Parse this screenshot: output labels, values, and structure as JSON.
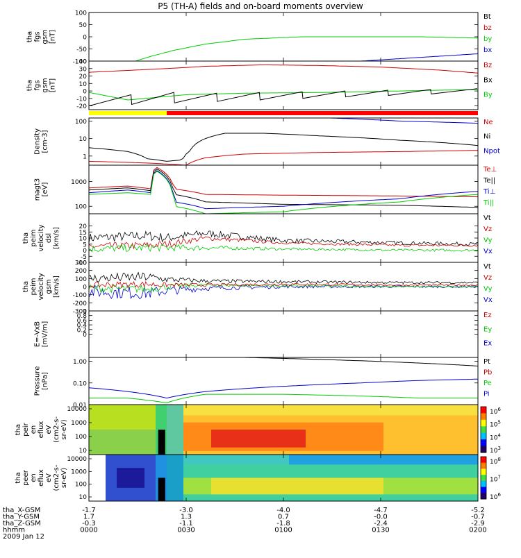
{
  "title": "P5 (TH-A) fields and on-board moments overview",
  "colors": {
    "black": "#000000",
    "red": "#cc0000",
    "green": "#00cc00",
    "blue": "#0000cc",
    "yellow": "#ffff00",
    "brightred": "#ff0000"
  },
  "chart_data": [
    {
      "type": "line",
      "id": "fgs_gsm",
      "ylabel": [
        "tha",
        "fgs",
        "gsm",
        "[nT]"
      ],
      "ylim": [
        -100,
        100
      ],
      "yticks": [
        100,
        50,
        0,
        -50,
        -100
      ],
      "log": false,
      "legend": [
        {
          "name": "Bt",
          "color": "black"
        },
        {
          "name": "bz",
          "color": "red"
        },
        {
          "name": "by",
          "color": "green"
        },
        {
          "name": "bx",
          "color": "blue"
        }
      ],
      "series": [
        {
          "name": "by",
          "color": "green",
          "x": [
            0.12,
            0.16,
            0.22,
            0.3,
            0.4,
            0.55,
            0.7,
            0.85,
            1.0
          ],
          "y": [
            -100,
            -80,
            -55,
            -30,
            -10,
            0,
            0,
            0,
            -5
          ]
        },
        {
          "name": "bx",
          "color": "blue",
          "x": [
            0.7,
            0.85,
            1.0
          ],
          "y": [
            -100,
            -85,
            -70
          ]
        }
      ]
    },
    {
      "type": "line",
      "id": "fgs_dsl",
      "ylabel": [
        "tha",
        "fgs",
        "gsm",
        "[nT]"
      ],
      "ylim": [
        -25,
        40
      ],
      "yticks": [
        40,
        30,
        20,
        10,
        0,
        -10,
        -20
      ],
      "log": false,
      "legend": [
        {
          "name": "Bz",
          "color": "red"
        },
        {
          "name": "Bx",
          "color": "black"
        },
        {
          "name": "By",
          "color": "green"
        }
      ],
      "series": [
        {
          "name": "Bz",
          "color": "red",
          "x": [
            0,
            0.2,
            0.3,
            0.45,
            0.6,
            0.75,
            0.9,
            1.0
          ],
          "y": [
            25,
            30,
            33,
            35,
            34,
            32,
            28,
            24
          ]
        },
        {
          "name": "By",
          "color": "green",
          "x": [
            0,
            0.1,
            0.25,
            0.4,
            0.6,
            0.8,
            1.0
          ],
          "y": [
            -2,
            -12,
            -5,
            -3,
            -2,
            0,
            2
          ]
        }
      ],
      "sawtooth": {
        "name": "Bx",
        "color": "black",
        "x": [
          0,
          0.11,
          0.22,
          0.33,
          0.44,
          0.55,
          0.66,
          0.77,
          0.88,
          1.0
        ],
        "low": [
          -20,
          -18,
          -16,
          -14,
          -12,
          -10,
          -8,
          -6,
          -4,
          -2
        ],
        "high": [
          -5,
          -2,
          -3,
          -2,
          -1,
          0,
          1,
          2,
          3,
          4
        ]
      },
      "bar": [
        {
          "x0": 0,
          "x1": 0.2,
          "color": "yellow"
        },
        {
          "x0": 0.2,
          "x1": 1.0,
          "color": "brightred"
        }
      ]
    },
    {
      "type": "line",
      "id": "density",
      "ylabel": [
        "Density",
        "[cm-3]"
      ],
      "ylim": [
        0.3,
        150
      ],
      "yticks": [
        100,
        10,
        1
      ],
      "yticklabels": [
        "100",
        "10",
        "1"
      ],
      "log": true,
      "legend": [
        {
          "name": "Ne",
          "color": "red"
        },
        {
          "name": "Ni",
          "color": "black"
        },
        {
          "name": "Npot",
          "color": "blue"
        }
      ],
      "series": [
        {
          "name": "Ni",
          "color": "black",
          "x": [
            0,
            0.1,
            0.15,
            0.2,
            0.24,
            0.26,
            0.3,
            0.35,
            0.45,
            0.6,
            0.8,
            1.0
          ],
          "y": [
            3,
            1.8,
            0.7,
            0.5,
            0.6,
            2,
            10,
            20,
            20,
            14,
            8,
            4
          ]
        },
        {
          "name": "Ne",
          "color": "red",
          "x": [
            0,
            0.15,
            0.25,
            0.3,
            0.4,
            0.6,
            0.8,
            1.0
          ],
          "y": [
            0.5,
            0.4,
            0.3,
            0.8,
            1.3,
            1.6,
            1.8,
            2.1
          ]
        },
        {
          "name": "Npot",
          "color": "blue",
          "x": [
            0.62,
            0.8,
            1.0
          ],
          "y": [
            150,
            100,
            75
          ]
        }
      ]
    },
    {
      "type": "line",
      "id": "temperature",
      "ylabel": [
        "magt3",
        "[eV]"
      ],
      "ylim": [
        50,
        4500
      ],
      "yticks": [
        1000,
        100
      ],
      "yticklabels": [
        "1000",
        "100"
      ],
      "log": true,
      "legend": [
        {
          "name": "Te⊥",
          "color": "red"
        },
        {
          "name": "Te||",
          "color": "black"
        },
        {
          "name": "Ti⊥",
          "color": "blue"
        },
        {
          "name": "Ti||",
          "color": "green"
        }
      ],
      "series": [
        {
          "name": "Te⊥",
          "color": "red",
          "x": [
            0,
            0.1,
            0.16,
            0.17,
            0.22,
            0.3,
            0.5,
            0.8,
            1.0
          ],
          "y": [
            550,
            650,
            500,
            4000,
            500,
            300,
            280,
            260,
            240
          ]
        },
        {
          "name": "Te||",
          "color": "black",
          "x": [
            0,
            0.1,
            0.16,
            0.17,
            0.22,
            0.3,
            0.5,
            0.8,
            1.0
          ],
          "y": [
            450,
            550,
            420,
            3500,
            300,
            150,
            120,
            110,
            90
          ]
        },
        {
          "name": "Ti⊥",
          "color": "blue",
          "x": [
            0,
            0.1,
            0.16,
            0.17,
            0.22,
            0.3,
            0.5,
            0.8,
            1.0
          ],
          "y": [
            350,
            450,
            350,
            3000,
            150,
            80,
            100,
            200,
            400
          ]
        },
        {
          "name": "Ti||",
          "color": "green",
          "x": [
            0,
            0.1,
            0.16,
            0.17,
            0.22,
            0.3,
            0.5,
            0.8,
            1.0
          ],
          "y": [
            300,
            350,
            300,
            2800,
            100,
            50,
            60,
            150,
            300
          ]
        }
      ]
    },
    {
      "type": "line",
      "id": "velocity_dsl",
      "ylabel": [
        "tha",
        "peim",
        "velocity",
        "dsl",
        "[km/s]"
      ],
      "ylim": [
        -10,
        30
      ],
      "yticks": [
        -10,
        -5,
        0,
        5,
        10,
        15,
        20
      ],
      "log": false,
      "legend": [
        {
          "name": "Vt",
          "color": "black"
        },
        {
          "name": "Vz",
          "color": "red"
        },
        {
          "name": "Vy",
          "color": "green"
        },
        {
          "name": "Vx",
          "color": "blue"
        }
      ],
      "noisy": [
        {
          "name": "Vt",
          "color": "black",
          "x": [
            0,
            0.15,
            0.2,
            0.3,
            0.5,
            0.8,
            1.0
          ],
          "y": [
            10,
            12,
            10,
            14,
            8,
            6,
            5
          ],
          "amp": [
            4,
            4,
            4,
            3,
            2,
            1.5,
            1.5
          ]
        },
        {
          "name": "Vz",
          "color": "red",
          "x": [
            0,
            0.15,
            0.2,
            0.3,
            0.5,
            0.8,
            1.0
          ],
          "y": [
            3,
            4,
            5,
            10,
            6,
            4,
            4
          ],
          "amp": [
            3,
            3,
            3,
            2,
            1,
            1,
            1
          ]
        },
        {
          "name": "Vy",
          "color": "green",
          "x": [
            0,
            0.15,
            0.2,
            0.3,
            0.5,
            0.8,
            1.0
          ],
          "y": [
            1,
            2,
            2,
            2,
            1,
            0,
            0
          ],
          "amp": [
            3,
            3,
            3,
            2,
            1,
            1,
            1
          ]
        }
      ]
    },
    {
      "type": "line",
      "id": "velocity_gsm",
      "ylabel": [
        "tha",
        "peim",
        "velocity",
        "gsm",
        "[km/s]"
      ],
      "ylim": [
        -300,
        300
      ],
      "yticks": [
        300,
        200,
        100,
        0,
        -100,
        -200,
        -300
      ],
      "log": false,
      "legend": [
        {
          "name": "Vt",
          "color": "black"
        },
        {
          "name": "Vz",
          "color": "red"
        },
        {
          "name": "Vy",
          "color": "green"
        },
        {
          "name": "Vx",
          "color": "blue"
        }
      ],
      "noisy": [
        {
          "name": "Vx",
          "color": "blue",
          "x": [
            0,
            0.15,
            0.2,
            0.3,
            0.5,
            0.8,
            1.0
          ],
          "y": [
            -60,
            -80,
            -50,
            -20,
            0,
            0,
            0
          ],
          "amp": [
            80,
            80,
            60,
            30,
            20,
            15,
            15
          ]
        },
        {
          "name": "Vy",
          "color": "green",
          "x": [
            0,
            0.15,
            0.2,
            0.3,
            0.5,
            0.8,
            1.0
          ],
          "y": [
            -20,
            -30,
            0,
            20,
            10,
            0,
            0
          ],
          "amp": [
            50,
            50,
            40,
            20,
            15,
            10,
            10
          ]
        },
        {
          "name": "Vz",
          "color": "red",
          "x": [
            0,
            0.15,
            0.2,
            0.3,
            0.5,
            0.8,
            1.0
          ],
          "y": [
            20,
            30,
            20,
            20,
            30,
            20,
            20
          ],
          "amp": [
            40,
            40,
            30,
            20,
            15,
            10,
            10
          ]
        },
        {
          "name": "Vt",
          "color": "black",
          "x": [
            0,
            0.15,
            0.2,
            0.3,
            0.5,
            0.8,
            1.0
          ],
          "y": [
            100,
            120,
            90,
            70,
            60,
            50,
            50
          ],
          "amp": [
            60,
            60,
            40,
            25,
            20,
            15,
            15
          ]
        }
      ]
    },
    {
      "type": "line",
      "id": "efield",
      "ylabel": [
        "E=-VxB",
        "[mV/m]"
      ],
      "ylim": [
        -1,
        1
      ],
      "yticks": [
        1.0,
        0.8,
        0.6,
        0.4,
        0.2,
        0.0
      ],
      "log": false,
      "legend": [
        {
          "name": "Ez",
          "color": "red"
        },
        {
          "name": "Ey",
          "color": "green"
        },
        {
          "name": "Ex",
          "color": "blue"
        }
      ],
      "series": []
    },
    {
      "type": "line",
      "id": "pressure",
      "ylabel": [
        "Pressure",
        "[nPa]"
      ],
      "ylim": [
        0.01,
        1.5
      ],
      "yticks": [
        1.0,
        0.1,
        0.01
      ],
      "yticklabels": [
        "1.00",
        "0.10",
        "0.01"
      ],
      "log": true,
      "legend": [
        {
          "name": "Pt",
          "color": "black"
        },
        {
          "name": "Pb",
          "color": "red"
        },
        {
          "name": "Pe",
          "color": "green"
        },
        {
          "name": "Pi",
          "color": "blue"
        }
      ],
      "series": [
        {
          "name": "Pt",
          "color": "black",
          "x": [
            0.4,
            0.6,
            0.8,
            1.0
          ],
          "y": [
            1.5,
            1.2,
            0.9,
            0.6
          ]
        },
        {
          "name": "Pi",
          "color": "blue",
          "x": [
            0,
            0.1,
            0.2,
            0.3,
            0.5,
            0.7,
            0.85,
            1.0
          ],
          "y": [
            0.06,
            0.04,
            0.02,
            0.04,
            0.07,
            0.1,
            0.13,
            0.15
          ]
        },
        {
          "name": "Pe",
          "color": "green",
          "x": [
            0,
            0.1,
            0.2,
            0.3,
            0.5,
            0.7,
            0.85,
            1.0
          ],
          "y": [
            0.02,
            0.02,
            0.012,
            0.03,
            0.03,
            0.025,
            0.02,
            0.02
          ]
        }
      ]
    },
    {
      "type": "heatmap",
      "id": "peir_spec",
      "ylabel": [
        "tha",
        "peir",
        "en",
        "eflux",
        "eV",
        "(cm2-s-",
        "sr-eV)"
      ],
      "yticks": [
        "10000",
        "1000",
        "100",
        "10"
      ],
      "colorbar": [
        "10^6",
        "10^5",
        "10^4",
        "10^3"
      ]
    },
    {
      "type": "heatmap",
      "id": "peer_spec",
      "ylabel": [
        "tha",
        "peer",
        "en",
        "eflux",
        "eV",
        "(cm2-s-",
        "sr-eV)"
      ],
      "yticks": [
        "10000",
        "1000",
        "100",
        "10"
      ],
      "colorbar": [
        "10^8",
        "10^7",
        "10^6"
      ]
    }
  ],
  "orbit": {
    "rows": [
      {
        "label": "tha_X-GSM",
        "values": [
          "-1.7",
          "-3.0",
          "-4.0",
          "-4.7",
          "-5.2"
        ]
      },
      {
        "label": "tha_Y-GSM",
        "values": [
          "1.7",
          "1.3",
          "0.7",
          "-0.0",
          "-0.7"
        ]
      },
      {
        "label": "tha_Z-GSM",
        "values": [
          "-0.3",
          "-1.1",
          "-1.8",
          "-2.4",
          "-2.9"
        ]
      },
      {
        "label": "hhmm",
        "values": [
          "0000",
          "0030",
          "0100",
          "0130",
          "0200"
        ]
      }
    ],
    "date": "2009 Jan 12"
  }
}
